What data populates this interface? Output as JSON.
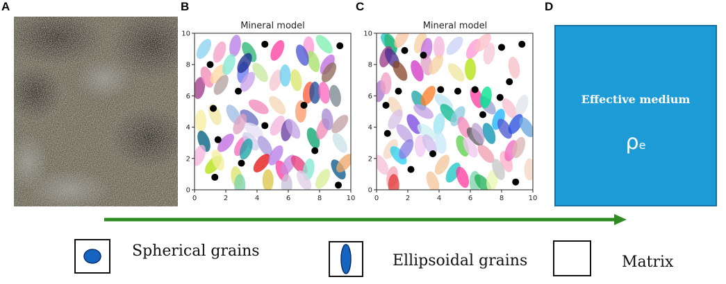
{
  "panels": {
    "a": "A",
    "b": "B",
    "c": "C",
    "d": "D"
  },
  "plot_b": {
    "title": "Mineral model",
    "xlim": [
      0,
      10
    ],
    "ylim": [
      0,
      10
    ],
    "xticks": [
      "0",
      "2",
      "4",
      "6",
      "8",
      "10"
    ],
    "yticks": [
      "0",
      "2",
      "4",
      "6",
      "8",
      "10"
    ],
    "spheres": [
      [
        4.5,
        9.3
      ],
      [
        1.0,
        8.0
      ],
      [
        9.3,
        9.2
      ],
      [
        2.8,
        6.3
      ],
      [
        1.2,
        5.2
      ],
      [
        7.0,
        5.4
      ],
      [
        4.5,
        4.1
      ],
      [
        7.7,
        2.5
      ],
      [
        3.0,
        1.7
      ],
      [
        1.3,
        0.8
      ],
      [
        9.2,
        0.3
      ],
      [
        1.5,
        3.2
      ]
    ],
    "ellipses": [
      [
        0.6,
        9.0,
        "#8bd3f0",
        30
      ],
      [
        1.6,
        8.8,
        "#f5a3c8",
        20
      ],
      [
        2.6,
        9.2,
        "#b77ee6",
        10
      ],
      [
        3.5,
        8.8,
        "#2bb673",
        -30
      ],
      [
        5.3,
        8.9,
        "#ff3fa0",
        25
      ],
      [
        7.3,
        9.1,
        "#ff9ad5",
        0
      ],
      [
        7.6,
        8.2,
        "#a6e36b",
        -20
      ],
      [
        8.5,
        8.0,
        "#c06de0",
        30
      ],
      [
        8.3,
        9.3,
        "#7ef0b0",
        -40
      ],
      [
        0.3,
        6.5,
        "#9e3b88",
        10
      ],
      [
        0.8,
        7.2,
        "#f38bb9",
        -20
      ],
      [
        1.5,
        7.4,
        "#ffd9a3",
        35
      ],
      [
        2.2,
        8.0,
        "#87e8d3",
        20
      ],
      [
        3.1,
        7.5,
        "#6a77f0",
        10
      ],
      [
        3.4,
        6.9,
        "#c9a4e9",
        30
      ],
      [
        3.2,
        8.1,
        "#1e2f91",
        30
      ],
      [
        4.2,
        7.5,
        "#c9e9a1",
        -35
      ],
      [
        5.2,
        7.0,
        "#f5c7d2",
        20
      ],
      [
        5.8,
        7.3,
        "#6ecff0",
        0
      ],
      [
        6.5,
        7.0,
        "#dbe56e",
        -10
      ],
      [
        6.9,
        8.6,
        "#4e59d2",
        -20
      ],
      [
        7.3,
        6.2,
        "#ff5c38",
        10
      ],
      [
        7.7,
        6.2,
        "#234e9b",
        0
      ],
      [
        8.3,
        6.2,
        "#f86cc0",
        -10
      ],
      [
        8.6,
        7.5,
        "#8f6a5a",
        30
      ],
      [
        9.0,
        6.0,
        "#7a8891",
        -10
      ],
      [
        1.7,
        6.7,
        "#b5a2a2",
        30
      ],
      [
        1.3,
        4.8,
        "#f0e7a3",
        -20
      ],
      [
        0.4,
        4.4,
        "#f6f0a0",
        0
      ],
      [
        0.6,
        3.1,
        "#00607f",
        -20
      ],
      [
        2.0,
        3.0,
        "#c06de0",
        40
      ],
      [
        2.5,
        4.8,
        "#9fbce3",
        -30
      ],
      [
        3.5,
        4.6,
        "#6a6fc3",
        -50
      ],
      [
        2.9,
        4.2,
        "#e0a1c3",
        25
      ],
      [
        3.0,
        2.8,
        "#f86cc0",
        30
      ],
      [
        3.8,
        3.8,
        "#e7e0f3",
        -55
      ],
      [
        3.6,
        3.1,
        "#cfd0f0",
        -40
      ],
      [
        3.3,
        2.6,
        "#1fa3a8",
        20
      ],
      [
        4.1,
        5.3,
        "#f08ab8",
        -60
      ],
      [
        5.3,
        5.4,
        "#f3d7b9",
        -40
      ],
      [
        5.3,
        4.1,
        "#f5b6de",
        30
      ],
      [
        5.9,
        3.8,
        "#6a3fa0",
        10
      ],
      [
        6.3,
        3.9,
        "#c5a3e6",
        -30
      ],
      [
        6.8,
        5.0,
        "#ff9a6b",
        0
      ],
      [
        7.6,
        3.3,
        "#0ea56f",
        -20
      ],
      [
        8.2,
        3.9,
        "#f08ab8",
        20
      ],
      [
        8.5,
        4.5,
        "#a78cd2",
        -10
      ],
      [
        9.3,
        4.2,
        "#c4a1a4",
        40
      ],
      [
        9.3,
        3.0,
        "#c9e3e9",
        -30
      ],
      [
        1.2,
        1.6,
        "#b3e30f",
        40
      ],
      [
        1.5,
        1.9,
        "#f6f0a0",
        -20
      ],
      [
        2.7,
        0.8,
        "#dbe56e",
        -10
      ],
      [
        4.5,
        2.8,
        "#a999de",
        -30
      ],
      [
        4.3,
        1.7,
        "#e51414",
        40
      ],
      [
        5.2,
        2.2,
        "#b77ee6",
        30
      ],
      [
        5.6,
        1.2,
        "#ff3fa0",
        -20
      ],
      [
        6.0,
        1.6,
        "#c98ae2",
        30
      ],
      [
        6.7,
        1.6,
        "#e83c7c",
        -40
      ],
      [
        7.3,
        1.3,
        "#87e8d3",
        10
      ],
      [
        7.0,
        0.6,
        "#e0cfe8",
        -30
      ],
      [
        8.2,
        0.7,
        "#d8ee9a",
        30
      ],
      [
        9.2,
        1.3,
        "#0c5a8c",
        -30
      ],
      [
        9.6,
        1.7,
        "#f0a86b",
        40
      ],
      [
        4.7,
        0.6,
        "#dbc74c",
        0
      ],
      [
        2.9,
        0.3,
        "#7ed3ad",
        0
      ],
      [
        5.9,
        0.3,
        "#c9c3d8",
        0
      ],
      [
        0.3,
        2.2,
        "#f5b6de",
        20
      ]
    ]
  },
  "plot_c": {
    "title": "Mineral model",
    "xlim": [
      0,
      10
    ],
    "ylim": [
      0,
      10
    ],
    "xticks": [
      "0",
      "2",
      "4",
      "6",
      "8",
      "10"
    ],
    "yticks": [
      "0",
      "2",
      "4",
      "6",
      "8",
      "10"
    ],
    "spheres": [
      [
        1.8,
        8.9
      ],
      [
        9.3,
        9.3
      ],
      [
        8.0,
        9.1
      ],
      [
        3.0,
        8.6
      ],
      [
        1.4,
        6.3
      ],
      [
        4.1,
        6.4
      ],
      [
        5.2,
        6.3
      ],
      [
        6.3,
        6.4
      ],
      [
        8.5,
        6.9
      ],
      [
        7.9,
        5.9
      ],
      [
        0.6,
        5.4
      ],
      [
        0.7,
        3.6
      ],
      [
        3.6,
        2.3
      ],
      [
        2.2,
        1.3
      ],
      [
        8.9,
        0.5
      ],
      [
        6.8,
        4.8
      ]
    ],
    "ellipses": [
      [
        0.8,
        9.4,
        "#1fc6c6",
        -40
      ],
      [
        0.9,
        9.3,
        "#2bb673",
        -20
      ],
      [
        1.6,
        9.7,
        "#f6c6a0",
        30
      ],
      [
        0.6,
        8.5,
        "#9e3b88",
        20
      ],
      [
        1.0,
        8.4,
        "#4a2f91",
        -30
      ],
      [
        2.8,
        9.4,
        "#f6d1a3",
        20
      ],
      [
        3.2,
        9.0,
        "#c06de0",
        10
      ],
      [
        4.0,
        9.1,
        "#f5b6de",
        0
      ],
      [
        5.0,
        9.2,
        "#c9d3f7",
        40
      ],
      [
        6.2,
        9.0,
        "#ff9ad5",
        30
      ],
      [
        6.8,
        9.4,
        "#fbc0c8",
        40
      ],
      [
        7.2,
        8.7,
        "#f6c7d7",
        10
      ],
      [
        1.5,
        7.6,
        "#8b4b2e",
        -30
      ],
      [
        2.6,
        7.6,
        "#d43ac6",
        -20
      ],
      [
        3.2,
        8.0,
        "#e0a1c3",
        -10
      ],
      [
        3.8,
        8.0,
        "#f6d1a3",
        30
      ],
      [
        5.1,
        7.5,
        "#f0e7a3",
        -40
      ],
      [
        6.0,
        7.7,
        "#b3e30f",
        0
      ],
      [
        8.8,
        7.8,
        "#f6c0c8",
        -10
      ],
      [
        0.2,
        6.3,
        "#a978c9",
        10
      ],
      [
        0.6,
        6.8,
        "#f0a0c8",
        0
      ],
      [
        1.2,
        5.3,
        "#f3d7b9",
        -30
      ],
      [
        2.7,
        5.7,
        "#1fa3a8",
        -30
      ],
      [
        3.3,
        6.0,
        "#ff7f2a",
        30
      ],
      [
        3.0,
        5.0,
        "#c5a3e6",
        -60
      ],
      [
        4.3,
        5.6,
        "#bde4f0",
        -50
      ],
      [
        4.6,
        4.9,
        "#0dba8f",
        -40
      ],
      [
        5.2,
        4.7,
        "#8fcce0",
        30
      ],
      [
        6.4,
        5.9,
        "#ff3fa0",
        -20
      ],
      [
        7.1,
        5.4,
        "#9aa3d0",
        -40
      ],
      [
        7.0,
        5.9,
        "#00e18b",
        10
      ],
      [
        8.5,
        5.2,
        "#f7c0cf",
        -30
      ],
      [
        9.3,
        5.4,
        "#e0e4ec",
        20
      ],
      [
        1.2,
        4.5,
        "#d8c3e8",
        30
      ],
      [
        1.8,
        3.6,
        "#c1a5e4",
        -40
      ],
      [
        2.4,
        4.2,
        "#7a4be0",
        -30
      ],
      [
        3.2,
        3.7,
        "#ccf0f0",
        -50
      ],
      [
        4.0,
        4.2,
        "#9de6f2",
        10
      ],
      [
        5.6,
        4.0,
        "#f38bb9",
        -20
      ],
      [
        6.3,
        3.4,
        "#5d5d5d",
        -40
      ],
      [
        6.5,
        3.6,
        "#bfa3d0",
        -20
      ],
      [
        7.2,
        3.6,
        "#0c94b4",
        -20
      ],
      [
        7.8,
        4.5,
        "#1fb6ff",
        20
      ],
      [
        8.2,
        3.9,
        "#4e59d2",
        -30
      ],
      [
        8.9,
        4.2,
        "#2a4fe0",
        30
      ],
      [
        9.6,
        4.0,
        "#6aa6e0",
        -30
      ],
      [
        0.9,
        2.6,
        "#f5d7c3",
        30
      ],
      [
        1.4,
        2.2,
        "#2ed2ee",
        -40
      ],
      [
        1.9,
        2.6,
        "#8b7ee6",
        30
      ],
      [
        2.8,
        2.8,
        "#f0c8f0",
        0
      ],
      [
        3.4,
        2.9,
        "#d1bcec",
        -30
      ],
      [
        4.1,
        3.0,
        "#c9e9f9",
        -10
      ],
      [
        5.5,
        2.8,
        "#5dd14d",
        -20
      ],
      [
        6.0,
        2.7,
        "#f0c8f0",
        -30
      ],
      [
        7.0,
        2.3,
        "#f0a0b0",
        -40
      ],
      [
        8.3,
        1.8,
        "#ffb0c8",
        -20
      ],
      [
        8.6,
        2.5,
        "#f06cc0",
        20
      ],
      [
        9.1,
        2.7,
        "#dbb5b5",
        20
      ],
      [
        9.8,
        1.3,
        "#f5d7c3",
        0
      ],
      [
        0.3,
        1.6,
        "#f6c0d8",
        -30
      ],
      [
        1.0,
        0.8,
        "#f6a7b4",
        10
      ],
      [
        1.1,
        0.3,
        "#e03c3c",
        0
      ],
      [
        3.6,
        0.5,
        "#f4c89d",
        -20
      ],
      [
        4.9,
        1.1,
        "#1fc6c6",
        30
      ],
      [
        5.5,
        0.8,
        "#ff3fa0",
        -20
      ],
      [
        6.3,
        0.5,
        "#7ed3ad",
        0
      ],
      [
        6.8,
        0.4,
        "#22b158",
        -40
      ],
      [
        7.4,
        0.6,
        "#eaf7b4",
        10
      ],
      [
        7.8,
        1.3,
        "#c8c8c8",
        -20
      ],
      [
        4.2,
        1.6,
        "#f4c89d",
        30
      ]
    ]
  },
  "effective": {
    "title": "Effective medium",
    "symbol": "ρ",
    "subscript": "e"
  },
  "legend": {
    "spherical": "Spherical grains",
    "ellipsoidal": "Ellipsoidal grains",
    "matrix": "Matrix"
  },
  "colors": {
    "arrow": "#2e8b22",
    "effective_fill": "#1d9bd6",
    "grain_fill": "#1565c0"
  }
}
